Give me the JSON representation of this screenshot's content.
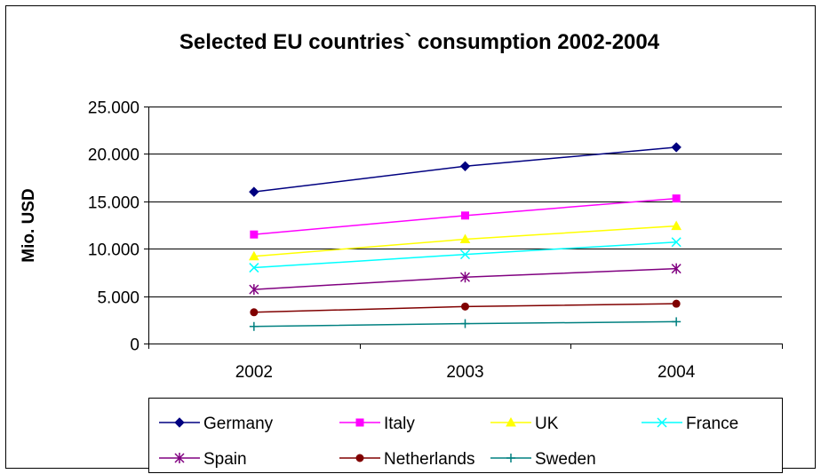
{
  "chart_data": {
    "type": "line",
    "title": "Selected EU countries` consumption 2002-2004",
    "ylabel": "Mio. USD",
    "xlabel": "",
    "x": [
      "2002",
      "2003",
      "2004"
    ],
    "ylim": [
      0,
      25000
    ],
    "yticks": [
      "0",
      "5.000",
      "10.000",
      "15.000",
      "20.000",
      "25.000"
    ],
    "ytick_values": [
      0,
      5000,
      10000,
      15000,
      20000,
      25000
    ],
    "grid": "horizontal",
    "legend_position": "bottom",
    "series": [
      {
        "name": "Germany",
        "values": [
          16000,
          18700,
          20700
        ],
        "color": "#000080",
        "marker": "diamond"
      },
      {
        "name": "Italy",
        "values": [
          11500,
          13500,
          15300
        ],
        "color": "#FF00FF",
        "marker": "square"
      },
      {
        "name": "UK",
        "values": [
          9200,
          11000,
          12400
        ],
        "color": "#FFFF00",
        "marker": "triangle"
      },
      {
        "name": "France",
        "values": [
          8000,
          9400,
          10700
        ],
        "color": "#00FFFF",
        "marker": "x"
      },
      {
        "name": "Spain",
        "values": [
          5700,
          7000,
          7900
        ],
        "color": "#800080",
        "marker": "star"
      },
      {
        "name": "Netherlands",
        "values": [
          3300,
          3900,
          4200
        ],
        "color": "#800000",
        "marker": "circle"
      },
      {
        "name": "Sweden",
        "values": [
          1800,
          2100,
          2300
        ],
        "color": "#008080",
        "marker": "plus"
      }
    ]
  }
}
